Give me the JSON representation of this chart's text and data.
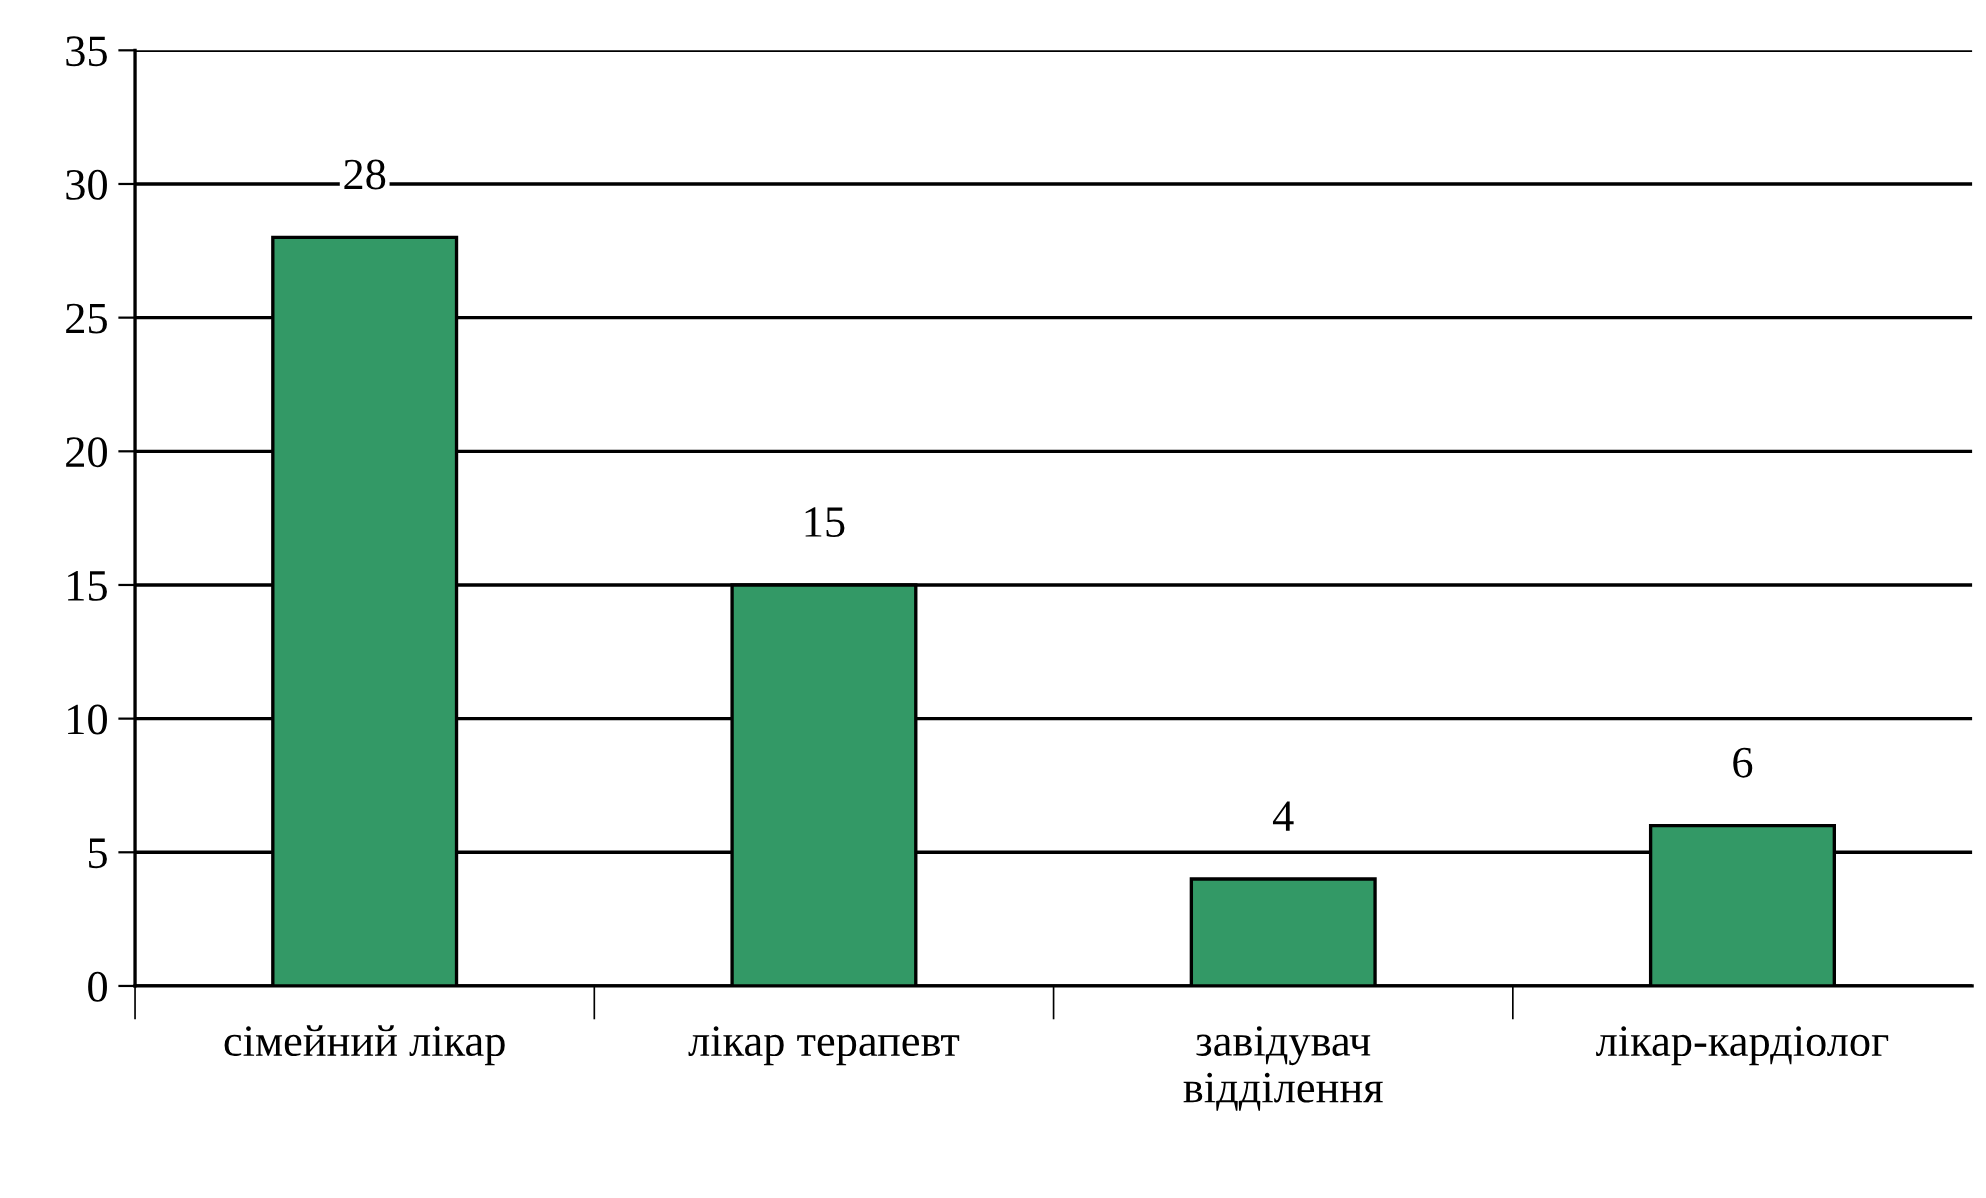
{
  "chart_data": {
    "type": "bar",
    "categories": [
      "сімейний лікар",
      "лікар терапевт",
      "завідувач\nвідділення",
      "лікар-кардіолог"
    ],
    "values": [
      28,
      15,
      4,
      6
    ],
    "color": "#339966",
    "data_labels": true,
    "ylim": [
      0,
      35
    ],
    "yticks": [
      0,
      5,
      10,
      15,
      20,
      25,
      30,
      35
    ],
    "grid": "y",
    "legend": false
  }
}
